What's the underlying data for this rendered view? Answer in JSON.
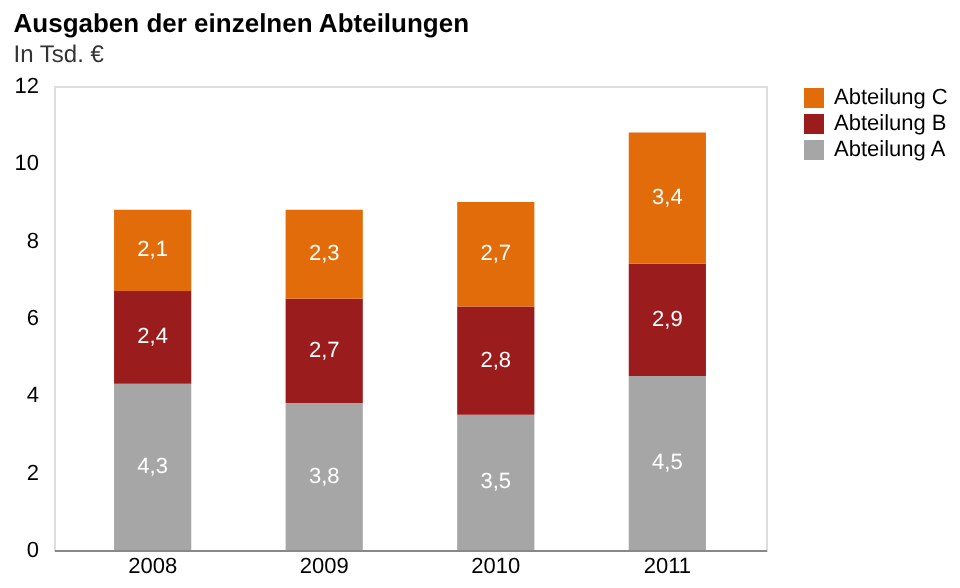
{
  "chart_data": {
    "type": "bar",
    "title": "Ausgaben der einzelnen Abteilungen",
    "subtitle": "In Tsd. €",
    "categories": [
      "2008",
      "2009",
      "2010",
      "2011"
    ],
    "stacked": true,
    "series": [
      {
        "name": "Abteilung A",
        "color": "#a6a6a6",
        "values": [
          4.3,
          3.8,
          3.5,
          4.5
        ],
        "value_labels": [
          "4,3",
          "3,8",
          "3,5",
          "4,5"
        ]
      },
      {
        "name": "Abteilung B",
        "color": "#9b1c1c",
        "values": [
          2.4,
          2.7,
          2.8,
          2.9
        ],
        "value_labels": [
          "2,4",
          "2,7",
          "2,8",
          "2,9"
        ]
      },
      {
        "name": "Abteilung C",
        "color": "#e36c0a",
        "values": [
          2.1,
          2.3,
          2.7,
          3.4
        ],
        "value_labels": [
          "2,1",
          "2,3",
          "2,7",
          "3,4"
        ]
      }
    ],
    "ylim": [
      0,
      12
    ],
    "yticks": [
      0,
      2,
      4,
      6,
      8,
      10,
      12
    ],
    "grid": false,
    "legend": "right"
  }
}
